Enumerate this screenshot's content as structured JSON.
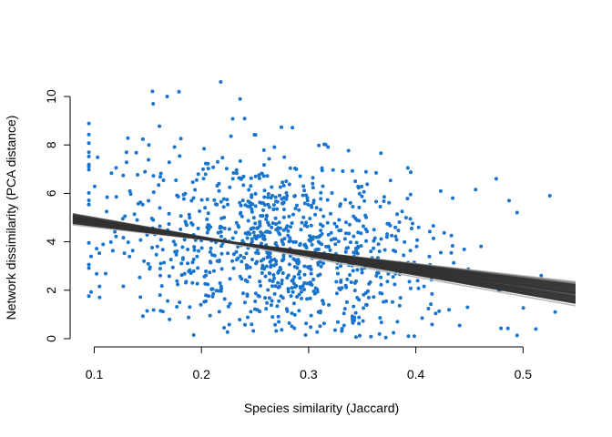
{
  "chart_data": {
    "type": "scatter",
    "title": "",
    "xlabel": "Species similarity (Jaccard)",
    "ylabel": "Network dissimilarity (PCA distance)",
    "xlim": [
      0.08,
      0.55
    ],
    "ylim": [
      0,
      10.6
    ],
    "xticks": [
      0.1,
      0.2,
      0.3,
      0.4,
      0.5
    ],
    "xtick_labels": [
      "0.1",
      "0.2",
      "0.3",
      "0.4",
      "0.5"
    ],
    "yticks": [
      0,
      2,
      4,
      6,
      8,
      10
    ],
    "ytick_labels": [
      "0",
      "2",
      "4",
      "6",
      "8",
      "10"
    ],
    "grid": false,
    "legend": "none",
    "point_color": "#1874CD",
    "line_color": "#333333",
    "band_color": "#B8B8B8",
    "n_points": 1000,
    "point_cloud": {
      "x_mean": 0.27,
      "x_sd": 0.075,
      "x_range": [
        0.095,
        0.525
      ],
      "y_intercept": 5.75,
      "y_slope": -6.8,
      "y_sd": 1.85,
      "y_range": [
        0.05,
        10.65
      ]
    },
    "points_highlight": [
      {
        "x": 0.218,
        "y": 10.6
      },
      {
        "x": 0.179,
        "y": 10.2
      },
      {
        "x": 0.168,
        "y": 10.0
      },
      {
        "x": 0.236,
        "y": 9.9
      },
      {
        "x": 0.155,
        "y": 9.7
      },
      {
        "x": 0.105,
        "y": 1.7
      },
      {
        "x": 0.097,
        "y": 3.4
      },
      {
        "x": 0.475,
        "y": 6.6
      },
      {
        "x": 0.487,
        "y": 5.7
      },
      {
        "x": 0.517,
        "y": 2.6
      },
      {
        "x": 0.53,
        "y": 1.1
      },
      {
        "x": 0.512,
        "y": 0.4
      },
      {
        "x": 0.372,
        "y": 0.05
      }
    ],
    "fit_line": {
      "x_start": 0.08,
      "y_start": 4.95,
      "x_end": 0.55,
      "y_end": 1.85,
      "n_bootstrap": 80
    },
    "ci_band": {
      "upper": [
        [
          0.08,
          4.7
        ],
        [
          0.55,
          2.35
        ]
      ],
      "lower": [
        [
          0.08,
          5.1
        ],
        [
          0.55,
          1.35
        ]
      ]
    }
  }
}
